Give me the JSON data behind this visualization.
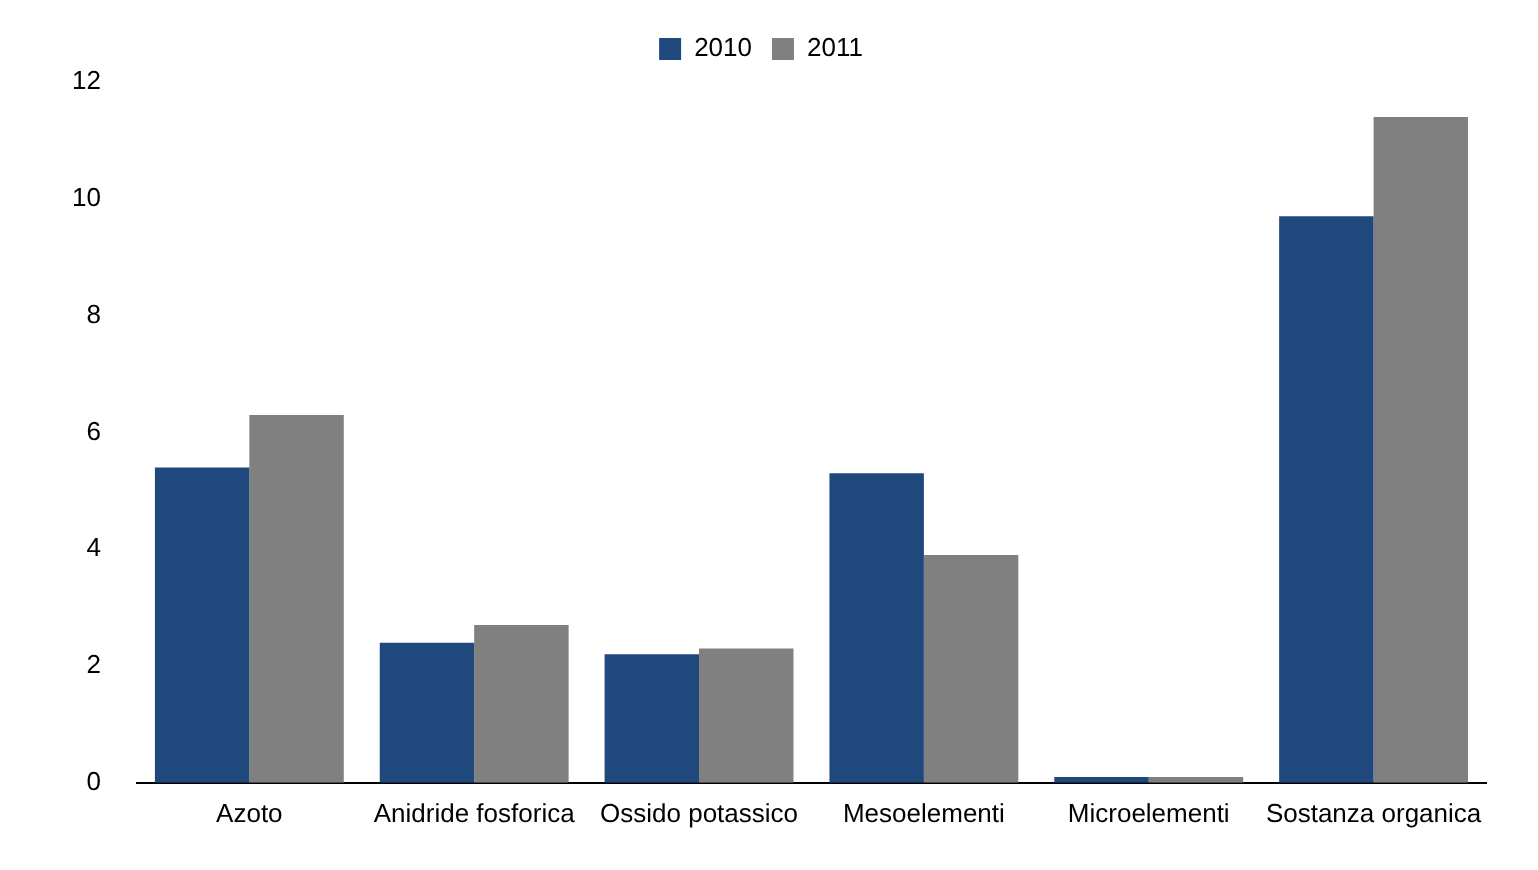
{
  "chart_data": {
    "type": "bar",
    "categories": [
      "Azoto",
      "Anidride fosforica",
      "Ossido potassico",
      "Mesoelementi",
      "Microelementi",
      "Sostanza organica"
    ],
    "series": [
      {
        "name": "2010",
        "color": "#1f497d",
        "values": [
          5.4,
          2.4,
          2.2,
          5.3,
          0.1,
          9.7
        ]
      },
      {
        "name": "2011",
        "color": "#808080",
        "values": [
          6.3,
          2.7,
          2.3,
          3.9,
          0.1,
          11.4
        ]
      }
    ],
    "ylim": [
      0,
      12
    ],
    "yticks": [
      0,
      2,
      4,
      6,
      8,
      10,
      12
    ],
    "grid": false,
    "legend": "top"
  }
}
